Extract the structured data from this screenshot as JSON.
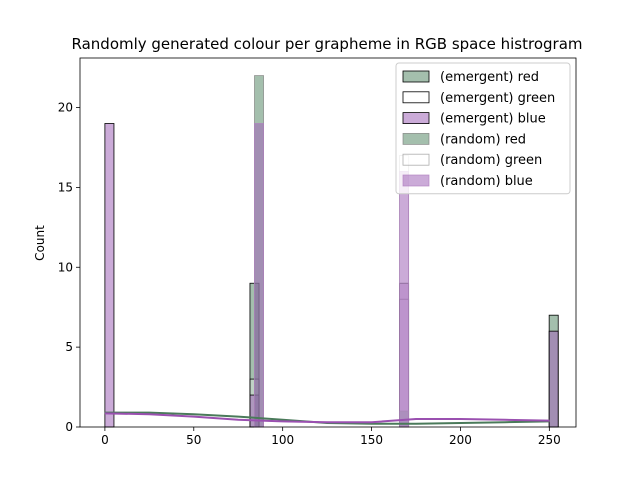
{
  "chart_data": {
    "type": "bar",
    "title": "Randomly generated colour per grapheme in RGB space histrogram",
    "xlabel": "",
    "ylabel": "Count",
    "xlim": [
      -14,
      265
    ],
    "ylim": [
      0,
      23.1
    ],
    "xticks": [
      0,
      50,
      100,
      150,
      200,
      250
    ],
    "yticks": [
      0,
      5,
      10,
      15,
      20
    ],
    "grid": false,
    "legend_position": "top-right",
    "bin_width": 5.1,
    "series": [
      {
        "name": "(emergent) red",
        "fill": "#5a8a6a",
        "fill_opacity": 0.55,
        "stroke": "#000000",
        "stroke_opacity": 1,
        "bins": [
          {
            "x": 0,
            "count": 0
          },
          {
            "x": 81.6,
            "count": 9
          },
          {
            "x": 165.75,
            "count": 0
          },
          {
            "x": 249.9,
            "count": 7
          }
        ]
      },
      {
        "name": "(emergent) green",
        "fill": "#ffffff",
        "fill_opacity": 0.3,
        "stroke": "#000000",
        "stroke_opacity": 1,
        "bins": [
          {
            "x": 0,
            "count": 0
          },
          {
            "x": 81.6,
            "count": 3
          },
          {
            "x": 165.75,
            "count": 8
          },
          {
            "x": 249.9,
            "count": 0
          }
        ]
      },
      {
        "name": "(emergent) blue",
        "fill": "#a066b8",
        "fill_opacity": 0.55,
        "stroke": "#000000",
        "stroke_opacity": 1,
        "bins": [
          {
            "x": 0,
            "count": 19
          },
          {
            "x": 81.6,
            "count": 2
          },
          {
            "x": 165.75,
            "count": 9
          },
          {
            "x": 249.9,
            "count": 6
          }
        ]
      },
      {
        "name": "(random) red",
        "fill": "#5a8a6a",
        "fill_opacity": 0.55,
        "stroke": "#808080",
        "stroke_opacity": 0.8,
        "bins": [
          {
            "x": 84.15,
            "count": 22
          },
          {
            "x": 165.75,
            "count": 1
          }
        ]
      },
      {
        "name": "(random) green",
        "fill": "#ffffff",
        "fill_opacity": 0.4,
        "stroke": "#9a9a9a",
        "stroke_opacity": 0.8,
        "bins": [
          {
            "x": 84.15,
            "count": 0
          },
          {
            "x": 165.75,
            "count": 17
          }
        ]
      },
      {
        "name": "(random) blue",
        "fill": "#a066b8",
        "fill_opacity": 0.55,
        "stroke": "#b080c0",
        "stroke_opacity": 0.8,
        "bins": [
          {
            "x": 84.15,
            "count": 19
          },
          {
            "x": 165.75,
            "count": 16
          }
        ]
      }
    ],
    "kde_lines": [
      {
        "color": "#4a7a5a",
        "points": [
          [
            0,
            0.9
          ],
          [
            25,
            0.9
          ],
          [
            50,
            0.8
          ],
          [
            75,
            0.65
          ],
          [
            100,
            0.45
          ],
          [
            125,
            0.25
          ],
          [
            150,
            0.2
          ],
          [
            175,
            0.2
          ],
          [
            200,
            0.25
          ],
          [
            225,
            0.3
          ],
          [
            250,
            0.35
          ]
        ]
      },
      {
        "color": "#9a50b0",
        "points": [
          [
            0,
            0.85
          ],
          [
            25,
            0.8
          ],
          [
            50,
            0.65
          ],
          [
            75,
            0.45
          ],
          [
            100,
            0.35
          ],
          [
            125,
            0.3
          ],
          [
            150,
            0.3
          ],
          [
            175,
            0.5
          ],
          [
            200,
            0.5
          ],
          [
            225,
            0.45
          ],
          [
            250,
            0.4
          ]
        ]
      }
    ]
  }
}
